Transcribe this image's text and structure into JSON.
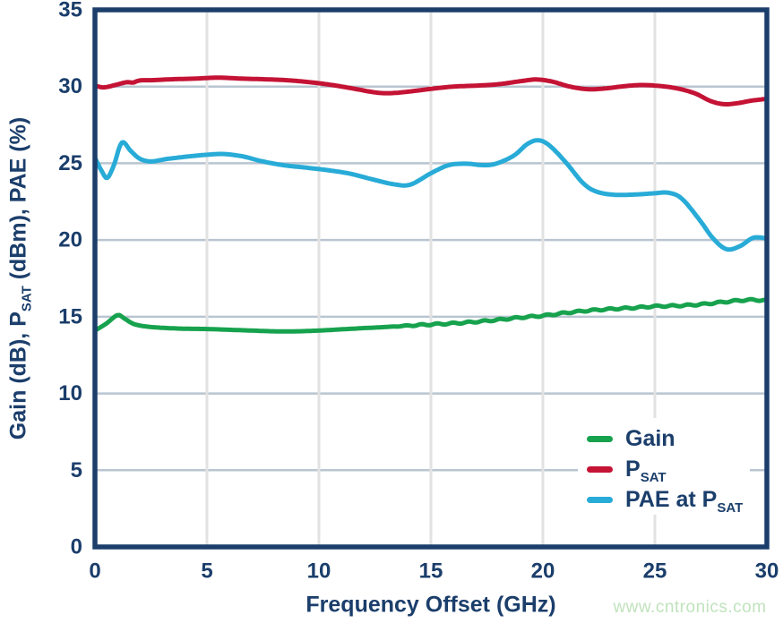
{
  "figure": {
    "watermark": {
      "text": "www.cntronics.com",
      "color": "#c0e3bd"
    },
    "colors": {
      "background": "#ffffff",
      "frame": "#1b3e6b",
      "axis_text": "#1b3e6b",
      "grid_horizontal": "#b9c5d1",
      "grid_vertical": "#e2e2e2",
      "legend_background": "#ffffff"
    }
  },
  "chart_data": {
    "type": "line",
    "title": "",
    "xlabel": "Frequency Offset (GHz)",
    "ylabel": "Gain (dB), PSAT (dBm), PAE (%)",
    "ylabel_segments": [
      {
        "t": "Gain (dB), P"
      },
      {
        "t": "SAT",
        "sub": true
      },
      {
        "t": " (dBm), PAE (%)"
      }
    ],
    "xlim": [
      0,
      30
    ],
    "ylim": [
      0,
      35
    ],
    "xticks": [
      0,
      5,
      10,
      15,
      20,
      25,
      30
    ],
    "yticks": [
      0,
      5,
      10,
      15,
      20,
      25,
      30,
      35
    ],
    "grid": true,
    "legend_position": "lower right",
    "series": [
      {
        "name": "Gain",
        "label_segments": [
          {
            "t": "Gain"
          }
        ],
        "color": "#17a24e",
        "points": [
          [
            0,
            14.1
          ],
          [
            0.5,
            14.55
          ],
          [
            1,
            15.1
          ],
          [
            1.3,
            14.9
          ],
          [
            1.7,
            14.55
          ],
          [
            2.2,
            14.38
          ],
          [
            3,
            14.28
          ],
          [
            4,
            14.22
          ],
          [
            5,
            14.2
          ],
          [
            6,
            14.15
          ],
          [
            7,
            14.1
          ],
          [
            8,
            14.05
          ],
          [
            9,
            14.05
          ],
          [
            10,
            14.1
          ],
          [
            11,
            14.18
          ],
          [
            12,
            14.26
          ],
          [
            13,
            14.33
          ],
          [
            14,
            14.42
          ],
          [
            15,
            14.5
          ],
          [
            16,
            14.57
          ],
          [
            17,
            14.67
          ],
          [
            18,
            14.8
          ],
          [
            19,
            14.95
          ],
          [
            20,
            15.07
          ],
          [
            21,
            15.25
          ],
          [
            22,
            15.4
          ],
          [
            23,
            15.5
          ],
          [
            24,
            15.58
          ],
          [
            25,
            15.68
          ],
          [
            26,
            15.72
          ],
          [
            27,
            15.8
          ],
          [
            28,
            15.95
          ],
          [
            28.7,
            16.05
          ],
          [
            29.4,
            16.1
          ],
          [
            30,
            16.05
          ]
        ],
        "noise_wiggle": {
          "start": 13,
          "end": 30,
          "amplitude": 0.05,
          "period": 0.7
        }
      },
      {
        "name": "PSAT",
        "label_segments": [
          {
            "t": "P"
          },
          {
            "t": "SAT",
            "sub": true
          }
        ],
        "color": "#c41335",
        "points": [
          [
            0,
            30.05
          ],
          [
            0.4,
            29.95
          ],
          [
            0.9,
            30.1
          ],
          [
            1.4,
            30.28
          ],
          [
            1.7,
            30.26
          ],
          [
            2,
            30.4
          ],
          [
            2.6,
            30.42
          ],
          [
            3.5,
            30.48
          ],
          [
            4.5,
            30.52
          ],
          [
            5.5,
            30.58
          ],
          [
            6.5,
            30.52
          ],
          [
            7.5,
            30.48
          ],
          [
            8.5,
            30.42
          ],
          [
            9.5,
            30.3
          ],
          [
            10.5,
            30.12
          ],
          [
            11.5,
            29.88
          ],
          [
            12.5,
            29.62
          ],
          [
            13.2,
            29.57
          ],
          [
            14,
            29.67
          ],
          [
            15,
            29.85
          ],
          [
            16,
            30.0
          ],
          [
            17,
            30.06
          ],
          [
            18,
            30.15
          ],
          [
            19,
            30.35
          ],
          [
            19.7,
            30.46
          ],
          [
            20.4,
            30.33
          ],
          [
            21.2,
            30.0
          ],
          [
            22,
            29.83
          ],
          [
            22.8,
            29.88
          ],
          [
            23.6,
            30.02
          ],
          [
            24.4,
            30.1
          ],
          [
            25.2,
            30.04
          ],
          [
            26,
            29.88
          ],
          [
            26.8,
            29.55
          ],
          [
            27.5,
            29.05
          ],
          [
            28.1,
            28.85
          ],
          [
            28.7,
            28.92
          ],
          [
            29.3,
            29.08
          ],
          [
            30,
            29.2
          ]
        ]
      },
      {
        "name": "PAE at PSAT",
        "label_segments": [
          {
            "t": "PAE at P"
          },
          {
            "t": "SAT",
            "sub": true
          }
        ],
        "color": "#28abd7",
        "points": [
          [
            0,
            25.35
          ],
          [
            0.3,
            24.5
          ],
          [
            0.55,
            24.05
          ],
          [
            0.85,
            24.9
          ],
          [
            1.2,
            26.35
          ],
          [
            1.6,
            25.8
          ],
          [
            2,
            25.3
          ],
          [
            2.5,
            25.12
          ],
          [
            3.2,
            25.28
          ],
          [
            4.2,
            25.45
          ],
          [
            5.2,
            25.58
          ],
          [
            5.8,
            25.6
          ],
          [
            6.6,
            25.45
          ],
          [
            7.4,
            25.15
          ],
          [
            8.4,
            24.88
          ],
          [
            9.4,
            24.72
          ],
          [
            10.4,
            24.55
          ],
          [
            11.4,
            24.32
          ],
          [
            12.4,
            23.95
          ],
          [
            13.4,
            23.62
          ],
          [
            14.1,
            23.62
          ],
          [
            15,
            24.35
          ],
          [
            15.8,
            24.88
          ],
          [
            16.6,
            24.97
          ],
          [
            17.3,
            24.88
          ],
          [
            17.9,
            24.97
          ],
          [
            18.7,
            25.5
          ],
          [
            19.3,
            26.25
          ],
          [
            19.8,
            26.5
          ],
          [
            20.3,
            26.15
          ],
          [
            21,
            25.1
          ],
          [
            21.8,
            23.7
          ],
          [
            22.4,
            23.15
          ],
          [
            23.2,
            22.95
          ],
          [
            24.2,
            22.97
          ],
          [
            25,
            23.05
          ],
          [
            25.6,
            23.08
          ],
          [
            26.2,
            22.7
          ],
          [
            27,
            21.3
          ],
          [
            27.6,
            20.1
          ],
          [
            28.2,
            19.4
          ],
          [
            28.8,
            19.6
          ],
          [
            29.4,
            20.15
          ],
          [
            30,
            20.1
          ]
        ]
      }
    ]
  }
}
